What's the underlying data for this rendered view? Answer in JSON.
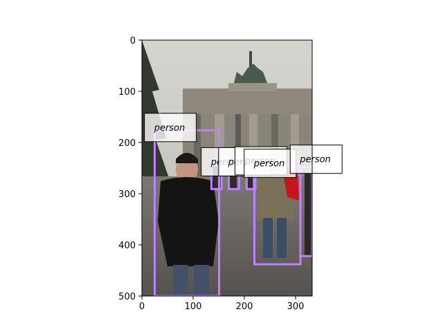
{
  "figure": {
    "x_ticks": [
      "0",
      "100",
      "200",
      "300"
    ],
    "y_ticks": [
      "0",
      "100",
      "200",
      "300",
      "400",
      "500"
    ],
    "x_range": [
      0,
      333
    ],
    "y_range": [
      0,
      500
    ],
    "box_color": "#c080ff",
    "label_bg": "#ffffff",
    "label_border": "#000000"
  },
  "photo": {
    "description_colors": {
      "sky": "#c9c7c2",
      "gate": "#8f8a80",
      "ground": "#6e6a66",
      "tree": "#3a3f2e",
      "coat": "#141313",
      "jacket": "#7a7158",
      "scarf": "#c4151d"
    }
  },
  "detections": [
    {
      "label": "person",
      "x0": 25,
      "y0": 176,
      "x1": 151,
      "y1": 500,
      "label_x": 5,
      "label_y": 143
    },
    {
      "label": "person",
      "x0": 136,
      "y0": 232,
      "x1": 156,
      "y1": 291,
      "label_x": 116,
      "label_y": 210
    },
    {
      "label": "person",
      "x0": 170,
      "y0": 232,
      "x1": 190,
      "y1": 291,
      "label_x": 150,
      "label_y": 210
    },
    {
      "label": "person",
      "x0": 205,
      "y0": 230,
      "x1": 222,
      "y1": 291,
      "label_x": 182,
      "label_y": 208
    },
    {
      "label": "person",
      "x0": 220,
      "y0": 240,
      "x1": 310,
      "y1": 438,
      "label_x": 200,
      "label_y": 213
    },
    {
      "label": "person",
      "x0": 310,
      "y0": 248,
      "x1": 333,
      "y1": 422,
      "label_x": 290,
      "label_y": 205
    }
  ]
}
